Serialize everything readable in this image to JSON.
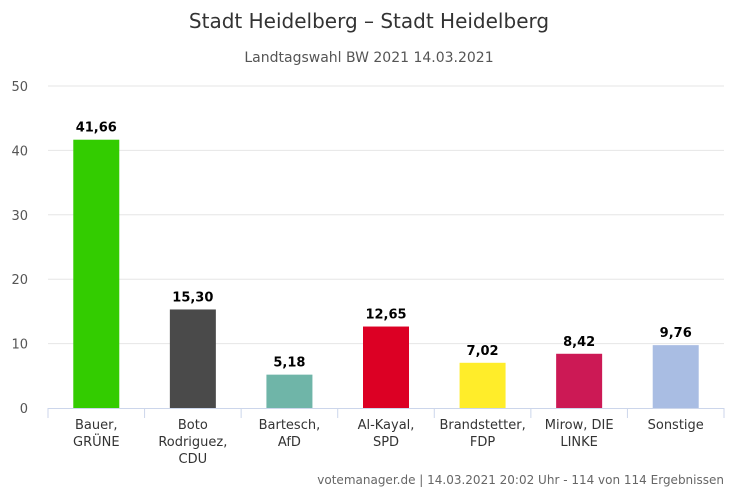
{
  "chart_data": {
    "type": "bar",
    "title": "Stadt Heidelberg – Stadt Heidelberg",
    "subtitle": "Landtagswahl BW 2021 14.03.2021",
    "categories": [
      [
        "Bauer,",
        "GRÜNE"
      ],
      [
        "Boto",
        "Rodriguez,",
        "CDU"
      ],
      [
        "Bartesch,",
        "AfD"
      ],
      [
        "Al-Kayal,",
        "SPD"
      ],
      [
        "Brandstetter,",
        "FDP"
      ],
      [
        "Mirow, DIE",
        "LINKE"
      ],
      [
        "Sonstige"
      ]
    ],
    "values": [
      41.66,
      15.3,
      5.18,
      12.65,
      7.02,
      8.42,
      9.76
    ],
    "value_labels": [
      "41,66",
      "15,30",
      "5,18",
      "12,65",
      "7,02",
      "8,42",
      "9,76"
    ],
    "colors": [
      "#33cc00",
      "#4a4a4a",
      "#6fb5a8",
      "#dc0024",
      "#ffed2a",
      "#cc1955",
      "#a9bde3"
    ],
    "yticks": [
      0,
      10,
      20,
      30,
      40,
      50
    ],
    "ylim": [
      0,
      50
    ],
    "grid": true,
    "credit": "votemanager.de | 14.03.2021 20:02 Uhr - 114 von 114 Ergebnissen"
  }
}
